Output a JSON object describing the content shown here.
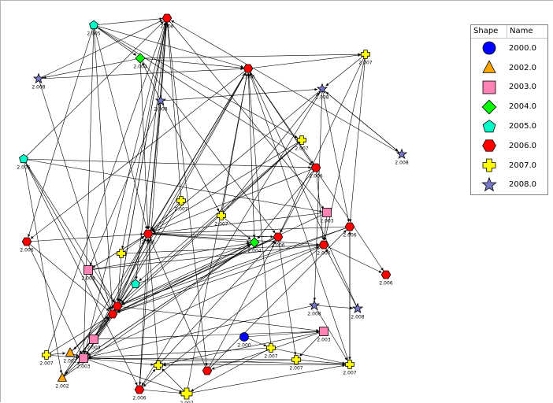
{
  "legend": {
    "header_shape": "Shape",
    "header_name": "Name",
    "items": [
      {
        "name": "2000.0",
        "shape": "circle",
        "color": "#0000ff"
      },
      {
        "name": "2002.0",
        "shape": "triangle",
        "color": "#ffa500"
      },
      {
        "name": "2003.0",
        "shape": "square",
        "color": "#ff82b4"
      },
      {
        "name": "2004.0",
        "shape": "diamond",
        "color": "#00ff00"
      },
      {
        "name": "2005.0",
        "shape": "pentagon",
        "color": "#00ffc8"
      },
      {
        "name": "2006.0",
        "shape": "hexagon",
        "color": "#ff0000"
      },
      {
        "name": "2007.0",
        "shape": "cross",
        "color": "#ffff00"
      },
      {
        "name": "2008.0",
        "shape": "star",
        "color": "#7878c8"
      }
    ]
  },
  "graph": {
    "nodes": [
      {
        "id": "n1",
        "year": "2005.0",
        "label": "2.005",
        "shape": "pentagon",
        "color": "#00ffc8"
      },
      {
        "id": "n2",
        "year": "2006.0",
        "label": "2.006",
        "shape": "hexagon",
        "color": "#ff0000"
      },
      {
        "id": "n3",
        "year": "2004.0",
        "label": "2.004",
        "shape": "diamond",
        "color": "#00ff00"
      },
      {
        "id": "n4",
        "year": "2006.0",
        "label": "2.006",
        "shape": "hexagon",
        "color": "#ff0000"
      },
      {
        "id": "n5",
        "year": "2007.0",
        "label": "2.007",
        "shape": "cross",
        "color": "#ffff00"
      },
      {
        "id": "n6",
        "year": "2008.0",
        "label": "2.008",
        "shape": "star",
        "color": "#7878c8"
      },
      {
        "id": "n7",
        "year": "2008.0",
        "label": "2.008",
        "shape": "star",
        "color": "#7878c8"
      },
      {
        "id": "n8",
        "year": "2008.0",
        "label": "2.008",
        "shape": "star",
        "color": "#7878c8"
      },
      {
        "id": "n9",
        "year": "2007.0",
        "label": "2.007",
        "shape": "cross",
        "color": "#ffff00"
      },
      {
        "id": "n10",
        "year": "2008.0",
        "label": "2.008",
        "shape": "star",
        "color": "#7878c8"
      },
      {
        "id": "n11",
        "year": "2005.0",
        "label": "2.005",
        "shape": "pentagon",
        "color": "#00ffc8"
      },
      {
        "id": "n12",
        "year": "2006.0",
        "label": "2.006",
        "shape": "hexagon",
        "color": "#ff0000"
      },
      {
        "id": "n13",
        "year": "2007.0",
        "label": "2.007",
        "shape": "cross",
        "color": "#ffff00"
      },
      {
        "id": "n14",
        "year": "2007.0",
        "label": "2.007",
        "shape": "cross",
        "color": "#ffff00"
      },
      {
        "id": "n15",
        "year": "2003.0",
        "label": "2.003",
        "shape": "square",
        "color": "#ff82b4"
      },
      {
        "id": "n16",
        "year": "2006.0",
        "label": "2.006",
        "shape": "hexagon",
        "color": "#ff0000"
      },
      {
        "id": "n17",
        "year": "2006.0",
        "label": "2.006",
        "shape": "hexagon",
        "color": "#ff0000"
      },
      {
        "id": "n18",
        "year": "2006.0",
        "label": "2.006",
        "shape": "hexagon",
        "color": "#ff0000"
      },
      {
        "id": "n19",
        "year": "2004.0",
        "label": "2.004",
        "shape": "diamond",
        "color": "#00ff00"
      },
      {
        "id": "n20",
        "year": "2006.0",
        "label": "2.006",
        "shape": "hexagon",
        "color": "#ff0000"
      },
      {
        "id": "n21",
        "year": "2006.0",
        "label": "2.006",
        "shape": "hexagon",
        "color": "#ff0000"
      },
      {
        "id": "n22",
        "year": "2006.0",
        "label": "2.006",
        "shape": "hexagon",
        "color": "#ff0000"
      },
      {
        "id": "n23",
        "year": "2003.0",
        "label": "2.003",
        "shape": "square",
        "color": "#ff82b4"
      },
      {
        "id": "n24",
        "year": "2005.0",
        "label": "2.005",
        "shape": "pentagon",
        "color": "#00ffc8"
      },
      {
        "id": "n25",
        "year": "2006.0",
        "label": "2.006",
        "shape": "hexagon",
        "color": "#ff0000"
      },
      {
        "id": "n26",
        "year": "2003.0",
        "label": "2.003",
        "shape": "square",
        "color": "#ff82b4"
      },
      {
        "id": "n27",
        "year": "2008.0",
        "label": "2.008",
        "shape": "star",
        "color": "#7878c8"
      },
      {
        "id": "n28",
        "year": "2008.0",
        "label": "2.008",
        "shape": "star",
        "color": "#7878c8"
      },
      {
        "id": "n29",
        "year": "2003.0",
        "label": "2.003",
        "shape": "square",
        "color": "#ff82b4"
      },
      {
        "id": "n30",
        "year": "2000.0",
        "label": "2.000",
        "shape": "circle",
        "color": "#0000ff"
      },
      {
        "id": "n31",
        "year": "2007.0",
        "label": "2.007",
        "shape": "cross",
        "color": "#ffff00"
      },
      {
        "id": "n32",
        "year": "2007.0",
        "label": "2.007",
        "shape": "cross",
        "color": "#ffff00"
      },
      {
        "id": "n33",
        "year": "2007.0",
        "label": "2.007",
        "shape": "cross",
        "color": "#ffff00"
      },
      {
        "id": "n34",
        "year": "2002.0",
        "label": "2.002",
        "shape": "triangle",
        "color": "#ffa500"
      },
      {
        "id": "n35",
        "year": "2002.0",
        "label": "2.002",
        "shape": "triangle",
        "color": "#ffa500"
      },
      {
        "id": "n36",
        "year": "2003.0",
        "label": "2.003",
        "shape": "square",
        "color": "#ff82b4"
      },
      {
        "id": "n37",
        "year": "2006.0",
        "label": "2.006",
        "shape": "hexagon",
        "color": "#ff0000"
      },
      {
        "id": "n38",
        "year": "2007.0",
        "label": "2.007",
        "shape": "cross",
        "color": "#ffff00"
      },
      {
        "id": "n39",
        "year": "2007.0",
        "label": "2.007",
        "shape": "cross",
        "color": "#ffff00"
      },
      {
        "id": "n40",
        "year": "2007.0",
        "label": "2.007",
        "shape": "cross",
        "color": "#ffff00"
      },
      {
        "id": "n41",
        "year": "2006.0",
        "label": "2.006",
        "shape": "hexagon",
        "color": "#ff0000"
      },
      {
        "id": "n42",
        "year": "2006.0",
        "label": "2.006",
        "shape": "hexagon",
        "color": "#ff0000"
      },
      {
        "id": "n43",
        "year": "2007.0",
        "label": "2.007",
        "shape": "cross",
        "color": "#ffff00"
      }
    ],
    "edges": [
      [
        "n1",
        "n2"
      ],
      [
        "n1",
        "n4"
      ],
      [
        "n1",
        "n16"
      ],
      [
        "n1",
        "n22"
      ],
      [
        "n1",
        "n36"
      ],
      [
        "n1",
        "n9"
      ],
      [
        "n1",
        "n41"
      ],
      [
        "n1",
        "n3"
      ],
      [
        "n1",
        "n12"
      ],
      [
        "n2",
        "n16"
      ],
      [
        "n2",
        "n21"
      ],
      [
        "n2",
        "n24"
      ],
      [
        "n2",
        "n37"
      ],
      [
        "n2",
        "n43"
      ],
      [
        "n2",
        "n15"
      ],
      [
        "n2",
        "n42"
      ],
      [
        "n2",
        "n36"
      ],
      [
        "n3",
        "n4"
      ],
      [
        "n3",
        "n16"
      ],
      [
        "n3",
        "n17"
      ],
      [
        "n3",
        "n5"
      ],
      [
        "n3",
        "n6"
      ],
      [
        "n4",
        "n16"
      ],
      [
        "n4",
        "n21"
      ],
      [
        "n4",
        "n19"
      ],
      [
        "n4",
        "n41"
      ],
      [
        "n4",
        "n25"
      ],
      [
        "n4",
        "n12"
      ],
      [
        "n4",
        "n5"
      ],
      [
        "n5",
        "n17"
      ],
      [
        "n5",
        "n18"
      ],
      [
        "n5",
        "n20"
      ],
      [
        "n5",
        "n8"
      ],
      [
        "n7",
        "n8"
      ],
      [
        "n7",
        "n16"
      ],
      [
        "n7",
        "n14"
      ],
      [
        "n7",
        "n23"
      ],
      [
        "n7",
        "n3"
      ],
      [
        "n7",
        "n2"
      ],
      [
        "n8",
        "n16"
      ],
      [
        "n8",
        "n18"
      ],
      [
        "n8",
        "n27"
      ],
      [
        "n8",
        "n10"
      ],
      [
        "n8",
        "n37"
      ],
      [
        "n9",
        "n16"
      ],
      [
        "n9",
        "n21"
      ],
      [
        "n9",
        "n24"
      ],
      [
        "n9",
        "n22"
      ],
      [
        "n11",
        "n12"
      ],
      [
        "n11",
        "n15"
      ],
      [
        "n11",
        "n21"
      ],
      [
        "n11",
        "n22"
      ],
      [
        "n11",
        "n35"
      ],
      [
        "n11",
        "n37"
      ],
      [
        "n11",
        "n2"
      ],
      [
        "n12",
        "n16"
      ],
      [
        "n12",
        "n20"
      ],
      [
        "n12",
        "n17"
      ],
      [
        "n12",
        "n19"
      ],
      [
        "n13",
        "n16"
      ],
      [
        "n13",
        "n22"
      ],
      [
        "n13",
        "n2"
      ],
      [
        "n14",
        "n19"
      ],
      [
        "n14",
        "n4"
      ],
      [
        "n14",
        "n8"
      ],
      [
        "n15",
        "n22"
      ],
      [
        "n15",
        "n16"
      ],
      [
        "n15",
        "n20"
      ],
      [
        "n16",
        "n19"
      ],
      [
        "n16",
        "n23"
      ],
      [
        "n16",
        "n20"
      ],
      [
        "n16",
        "n17"
      ],
      [
        "n16",
        "n21"
      ],
      [
        "n17",
        "n22"
      ],
      [
        "n17",
        "n21"
      ],
      [
        "n17",
        "n32"
      ],
      [
        "n17",
        "n16"
      ],
      [
        "n18",
        "n21"
      ],
      [
        "n18",
        "n22"
      ],
      [
        "n18",
        "n39"
      ],
      [
        "n18",
        "n16"
      ],
      [
        "n19",
        "n21"
      ],
      [
        "n19",
        "n22"
      ],
      [
        "n19",
        "n36"
      ],
      [
        "n20",
        "n22"
      ],
      [
        "n20",
        "n25"
      ],
      [
        "n20",
        "n37"
      ],
      [
        "n21",
        "n22"
      ],
      [
        "n21",
        "n29"
      ],
      [
        "n21",
        "n35"
      ],
      [
        "n21",
        "n2"
      ],
      [
        "n22",
        "n36"
      ],
      [
        "n22",
        "n35"
      ],
      [
        "n22",
        "n34"
      ],
      [
        "n22",
        "n16"
      ],
      [
        "n23",
        "n21"
      ],
      [
        "n23",
        "n22"
      ],
      [
        "n23",
        "n19"
      ],
      [
        "n23",
        "n20"
      ],
      [
        "n23",
        "n16"
      ],
      [
        "n24",
        "n22"
      ],
      [
        "n24",
        "n36"
      ],
      [
        "n24",
        "n19"
      ],
      [
        "n26",
        "n22"
      ],
      [
        "n26",
        "n29"
      ],
      [
        "n26",
        "n16"
      ],
      [
        "n26",
        "n4"
      ],
      [
        "n27",
        "n28"
      ],
      [
        "n27",
        "n36"
      ],
      [
        "n27",
        "n39"
      ],
      [
        "n29",
        "n32"
      ],
      [
        "n29",
        "n40"
      ],
      [
        "n29",
        "n42"
      ],
      [
        "n30",
        "n29"
      ],
      [
        "n30",
        "n31"
      ],
      [
        "n31",
        "n39"
      ],
      [
        "n31",
        "n38"
      ],
      [
        "n31",
        "n36"
      ],
      [
        "n31",
        "n4"
      ],
      [
        "n32",
        "n39"
      ],
      [
        "n32",
        "n40"
      ],
      [
        "n32",
        "n36"
      ],
      [
        "n33",
        "n36"
      ],
      [
        "n33",
        "n22"
      ],
      [
        "n33",
        "n2"
      ],
      [
        "n33",
        "n34"
      ],
      [
        "n34",
        "n36"
      ],
      [
        "n34",
        "n22"
      ],
      [
        "n34",
        "n21"
      ],
      [
        "n35",
        "n36"
      ],
      [
        "n35",
        "n21"
      ],
      [
        "n35",
        "n19"
      ],
      [
        "n35",
        "n4"
      ],
      [
        "n36",
        "n40"
      ],
      [
        "n36",
        "n38"
      ],
      [
        "n36",
        "n39"
      ],
      [
        "n36",
        "n21"
      ],
      [
        "n36",
        "n19"
      ],
      [
        "n36",
        "n20"
      ],
      [
        "n37",
        "n40"
      ],
      [
        "n37",
        "n38"
      ],
      [
        "n37",
        "n16"
      ],
      [
        "n38",
        "n40"
      ],
      [
        "n38",
        "n39"
      ],
      [
        "n38",
        "n4"
      ],
      [
        "n39",
        "n40"
      ],
      [
        "n39",
        "n18"
      ],
      [
        "n39",
        "n4"
      ],
      [
        "n40",
        "n17"
      ],
      [
        "n40",
        "n16"
      ],
      [
        "n41",
        "n22"
      ],
      [
        "n41",
        "n36"
      ],
      [
        "n41",
        "n16"
      ],
      [
        "n42",
        "n17"
      ],
      [
        "n42",
        "n18"
      ],
      [
        "n42",
        "n16"
      ],
      [
        "n43",
        "n16"
      ],
      [
        "n43",
        "n20"
      ],
      [
        "n43",
        "n21"
      ],
      [
        "n6",
        "n2"
      ],
      [
        "n6",
        "n4"
      ],
      [
        "n6",
        "n22"
      ],
      [
        "n10",
        "n8"
      ],
      [
        "n10",
        "n2"
      ],
      [
        "n28",
        "n4"
      ],
      [
        "n28",
        "n20"
      ]
    ]
  }
}
